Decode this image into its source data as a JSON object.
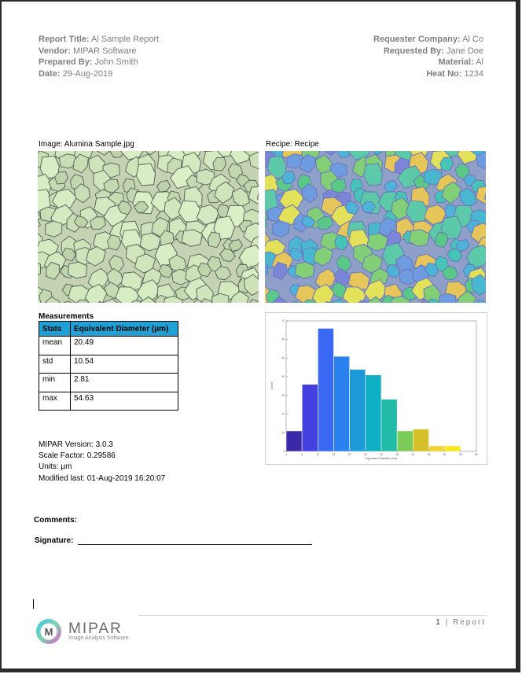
{
  "header": {
    "left": [
      {
        "key": "Report Title:",
        "value": "Al Sample Report"
      },
      {
        "key": "Vendor:",
        "value": "MIPAR Software"
      },
      {
        "key": "Prepared By:",
        "value": "John Smith"
      },
      {
        "key": "Date:",
        "value": "29-Aug-2019"
      }
    ],
    "right": [
      {
        "key": "Requester Company:",
        "value": "Al Co"
      },
      {
        "key": "Requested By:",
        "value": "Jane Doe"
      },
      {
        "key": "Material:",
        "value": "Al"
      },
      {
        "key": "Heat No:",
        "value": "1234"
      }
    ]
  },
  "image_caption": "Image: Alumina Sample.jpg",
  "recipe_caption": "Recipe: Recipe",
  "measurements": {
    "title": "Measurements",
    "col1": "Stats",
    "col2": "Equivalent Diameter (µm)",
    "rows": [
      {
        "stat": "mean",
        "value": "20.49"
      },
      {
        "stat": "std",
        "value": "10.54"
      },
      {
        "stat": "min",
        "value": "2.81"
      },
      {
        "stat": "max",
        "value": "54.63"
      }
    ]
  },
  "info": {
    "version": "MIPAR Version: 3.0.3",
    "scale": "Scale Factor: 0.29586",
    "units": "Units: µm",
    "modified": "Modified last: 01-Aug-2019 16:20:07"
  },
  "comments_label": "Comments:",
  "signature_label": "Signature:",
  "footer": {
    "page_number": "1",
    "page_sep": "|",
    "page_word": "Report",
    "logo_initial": "M",
    "logo_name": "MIPAR",
    "logo_tagline": "Image Analysis Software"
  },
  "colors": {
    "table_header": "#1fa1d6",
    "text_gray": "#7f7f7f"
  },
  "chart_data": {
    "type": "bar",
    "title": "",
    "xlabel": "Equivalent Diameter (um)",
    "ylabel": "Count",
    "xlim": [
      0,
      60
    ],
    "ylim": [
      0,
      70
    ],
    "x_ticks": [
      0,
      5,
      10,
      15,
      20,
      25,
      30,
      35,
      40,
      45,
      50,
      55,
      60
    ],
    "y_ticks": [
      0,
      10,
      20,
      30,
      40,
      50,
      60,
      70
    ],
    "bins": [
      [
        0,
        5
      ],
      [
        5,
        10
      ],
      [
        10,
        15
      ],
      [
        15,
        20
      ],
      [
        20,
        25
      ],
      [
        25,
        30
      ],
      [
        30,
        35
      ],
      [
        35,
        40
      ],
      [
        40,
        45
      ],
      [
        45,
        50
      ],
      [
        50,
        55
      ],
      [
        55,
        60
      ]
    ],
    "values": [
      11,
      36,
      66,
      51,
      44,
      41,
      28,
      11,
      12,
      3,
      3,
      0
    ],
    "colors": [
      "#3b2aa8",
      "#4440e0",
      "#3a68f2",
      "#2b82ee",
      "#1c9ad8",
      "#10b0c4",
      "#20bca8",
      "#7ccc5a",
      "#d6c02a",
      "#f4d030",
      "#f8e820",
      "#f8e820"
    ],
    "grid": false
  }
}
